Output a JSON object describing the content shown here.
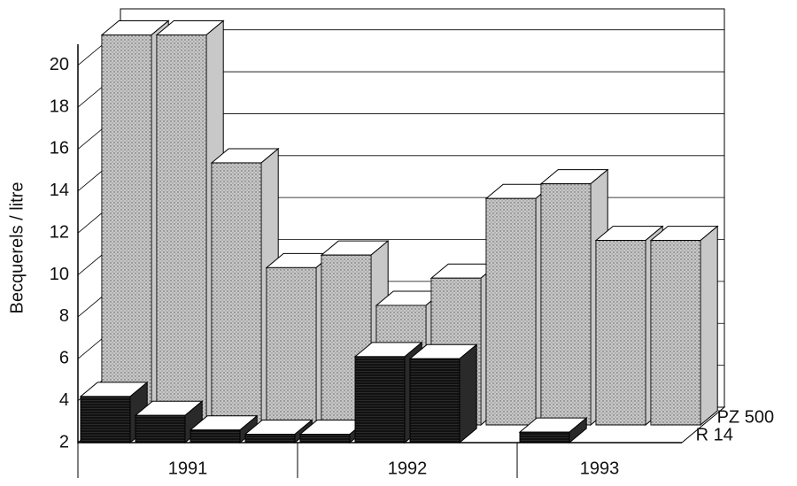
{
  "chart_data": {
    "type": "bar3d",
    "y_label": "Becquerels / litre",
    "groups": [
      {
        "label": "1991",
        "size": 4
      },
      {
        "label": "1992",
        "size": 4
      },
      {
        "label": "1993",
        "size": 3
      }
    ],
    "categories": [
      null,
      null,
      null,
      null,
      null,
      null,
      null,
      null,
      null,
      null,
      null
    ],
    "series": [
      {
        "name": "R 14",
        "color": "#2a2a2a",
        "values": [
          4.2,
          3.3,
          2.6,
          2.4,
          2.4,
          6.1,
          6.0,
          2,
          2.5,
          2,
          2
        ]
      },
      {
        "name": "PZ 500",
        "color": "#c8c8c8",
        "values": [
          20.6,
          20.6,
          14.5,
          9.5,
          10.1,
          7.7,
          9.0,
          12.8,
          13.5,
          10.8,
          10.8
        ]
      }
    ],
    "ylim": [
      2,
      21
    ],
    "yticks": [
      2,
      4,
      6,
      8,
      10,
      12,
      14,
      16,
      18,
      20
    ],
    "grid": true
  }
}
